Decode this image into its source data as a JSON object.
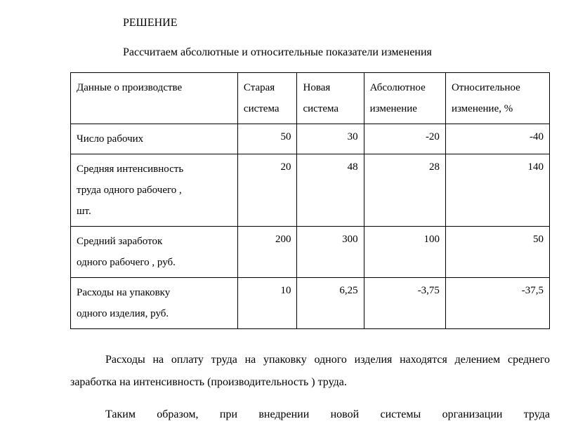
{
  "heading": "РЕШЕНИЕ",
  "intro": "Рассчитаем абсолютные и  относительные показатели изменения",
  "table": {
    "headers": {
      "c1": "Данные о производстве",
      "c2a": "Старая",
      "c2b": "система",
      "c3a": "Новая",
      "c3b": "система",
      "c4a": "Абсолютное",
      "c4b": "изменение",
      "c5a": "Относительное",
      "c5b": "изменение, %"
    },
    "rows": [
      {
        "label": "Число рабочих",
        "old": "50",
        "new": "30",
        "abs": "-20",
        "rel": "-40"
      },
      {
        "label_l1": "Средняя интенсивность",
        "label_l2": "труда одного рабочего ,",
        "label_l3": "шт.",
        "old": "20",
        "new": "48",
        "abs": "28",
        "rel": "140"
      },
      {
        "label_l1": "Средний заработок",
        "label_l2": "одного рабочего , руб.",
        "old": "200",
        "new": "300",
        "abs": "100",
        "rel": "50"
      },
      {
        "label_l1": "Расходы на упаковку",
        "label_l2": "одного изделия, руб.",
        "old": "10",
        "new": "6,25",
        "abs": "-3,75",
        "rel": "-37,5"
      }
    ]
  },
  "para1": "Расходы на оплату труда на упаковку одного изделия находятся делением среднего заработка на интенсивность (производительность ) труда.",
  "para2": "Таким образом, при внедрении новой системы организации труда"
}
